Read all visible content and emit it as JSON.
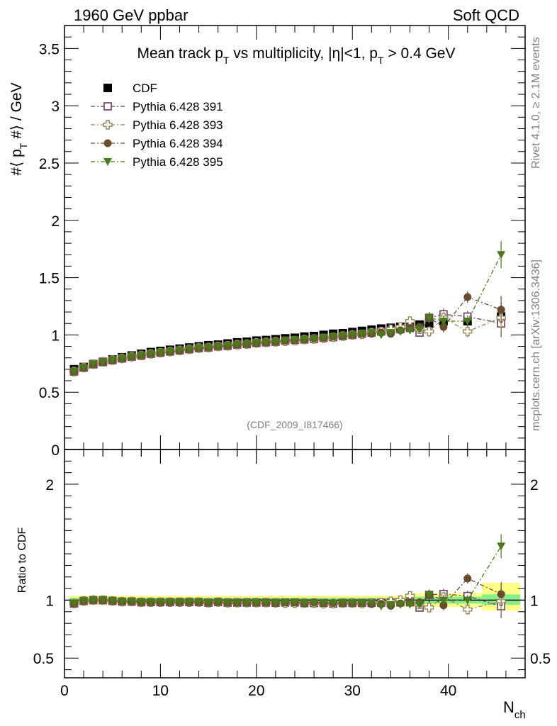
{
  "header": {
    "left": "1960 GeV ppbar",
    "right": "Soft QCD"
  },
  "title": {
    "prefix": "Mean track p",
    "sub1": "T",
    "mid": " vs multiplicity, |η|<1, p",
    "sub2": "T",
    "suffix": " > 0.4 GeV"
  },
  "side_labels": {
    "rivet": "Rivet 4.1.0, ≥ 2.1M events",
    "mcplots": "mcplots.cern.ch [arXiv:1306.3436]"
  },
  "analysis_tag": "(CDF_2009_I817466)",
  "axes": {
    "ylabel_main": {
      "a": "#⟨ p",
      "sub": "T",
      "b": " #⟩ / GeV"
    },
    "ylabel_ratio": "Ratio to CDF",
    "xlabel": {
      "main": "N",
      "sub": "ch"
    },
    "main_yticks": [
      "0",
      "0.5",
      "1",
      "1.5",
      "2",
      "2.5",
      "3",
      "3.5"
    ],
    "ratio_yticks": [
      "0.5",
      "1",
      "2"
    ],
    "xticks": [
      "0",
      "10",
      "20",
      "30",
      "40"
    ]
  },
  "legend": [
    {
      "label": "CDF",
      "marker": "filled-square",
      "color": "#000000"
    },
    {
      "label": "Pythia 6.428 391",
      "marker": "open-square",
      "color": "#6b3f5c"
    },
    {
      "label": "Pythia 6.428 393",
      "marker": "open-cross",
      "color": "#9a8756"
    },
    {
      "label": "Pythia 6.428 394",
      "marker": "filled-circle",
      "color": "#6a4b30"
    },
    {
      "label": "Pythia 6.428 395",
      "marker": "filled-triangle-down",
      "color": "#4a7a1c"
    }
  ],
  "chart_data": {
    "type": "scatter",
    "title": "Mean track pT vs multiplicity, |η|<1, pT > 0.4 GeV",
    "xlabel": "Nch",
    "ylabel": "#⟨ pT #⟩ / GeV",
    "xlim": [
      0,
      48
    ],
    "ylim": [
      0,
      3.7
    ],
    "ratio_ylim": [
      0.33,
      2.3
    ],
    "ratio_ylabel": "Ratio to CDF",
    "x": [
      1,
      2,
      3,
      4,
      5,
      6,
      7,
      8,
      9,
      10,
      11,
      12,
      13,
      14,
      15,
      16,
      17,
      18,
      19,
      20,
      21,
      22,
      23,
      24,
      25,
      26,
      27,
      28,
      29,
      30,
      31,
      32,
      33,
      34,
      35,
      36,
      37,
      38,
      39.5,
      42,
      45.5
    ],
    "series": [
      {
        "name": "CDF",
        "values": [
          0.7,
          0.72,
          0.745,
          0.765,
          0.785,
          0.805,
          0.82,
          0.835,
          0.85,
          0.86,
          0.87,
          0.88,
          0.89,
          0.9,
          0.91,
          0.915,
          0.925,
          0.935,
          0.94,
          0.95,
          0.955,
          0.962,
          0.97,
          0.975,
          0.985,
          0.99,
          1.0,
          1.01,
          1.015,
          1.025,
          1.035,
          1.045,
          1.055,
          1.062,
          1.07,
          1.08,
          1.09,
          1.1,
          1.12,
          1.12,
          1.16
        ]
      },
      {
        "name": "Pythia 6.428 391",
        "values": [
          0.68,
          0.715,
          0.745,
          0.765,
          0.78,
          0.795,
          0.81,
          0.82,
          0.835,
          0.845,
          0.855,
          0.865,
          0.875,
          0.885,
          0.89,
          0.9,
          0.905,
          0.915,
          0.92,
          0.93,
          0.935,
          0.94,
          0.95,
          0.955,
          0.96,
          0.965,
          0.975,
          0.98,
          0.99,
          1.0,
          1.01,
          1.02,
          1.03,
          1.04,
          1.05,
          1.06,
          1.02,
          1.15,
          1.18,
          1.16,
          1.1
        ]
      },
      {
        "name": "Pythia 6.428 393",
        "values": [
          0.68,
          0.715,
          0.745,
          0.765,
          0.78,
          0.795,
          0.81,
          0.82,
          0.835,
          0.845,
          0.855,
          0.865,
          0.875,
          0.885,
          0.89,
          0.9,
          0.905,
          0.915,
          0.92,
          0.93,
          0.935,
          0.94,
          0.945,
          0.95,
          0.96,
          0.965,
          0.97,
          0.98,
          0.99,
          1.0,
          1.005,
          1.02,
          1.03,
          1.05,
          1.07,
          1.12,
          1.05,
          1.03,
          1.15,
          1.03,
          1.15
        ]
      },
      {
        "name": "Pythia 6.428 394",
        "values": [
          0.68,
          0.715,
          0.745,
          0.765,
          0.78,
          0.795,
          0.81,
          0.82,
          0.835,
          0.845,
          0.855,
          0.865,
          0.875,
          0.885,
          0.89,
          0.9,
          0.905,
          0.915,
          0.92,
          0.93,
          0.935,
          0.94,
          0.95,
          0.955,
          0.96,
          0.97,
          0.975,
          0.985,
          0.99,
          1.0,
          1.01,
          1.01,
          1.02,
          1.01,
          1.04,
          1.06,
          1.07,
          1.15,
          1.07,
          1.33,
          1.22
        ]
      },
      {
        "name": "Pythia 6.428 395",
        "values": [
          0.68,
          0.715,
          0.745,
          0.765,
          0.78,
          0.795,
          0.81,
          0.82,
          0.835,
          0.845,
          0.855,
          0.865,
          0.875,
          0.885,
          0.89,
          0.9,
          0.905,
          0.915,
          0.92,
          0.93,
          0.935,
          0.94,
          0.95,
          0.955,
          0.96,
          0.965,
          0.975,
          0.985,
          0.99,
          1.0,
          1.01,
          1.02,
          1.0,
          1.02,
          1.03,
          1.04,
          1.05,
          1.15,
          1.12,
          1.12,
          1.7
        ]
      }
    ],
    "uncertainty_bands": [
      {
        "x": [
          0.5,
          35.5
        ],
        "inner": [
          0.98,
          1.02
        ],
        "outer": [
          0.96,
          1.04
        ]
      },
      {
        "x": [
          35.5,
          43.5
        ],
        "inner": [
          0.97,
          1.03
        ],
        "outer": [
          0.94,
          1.06
        ]
      },
      {
        "x": [
          43.5,
          47.5
        ],
        "inner": [
          0.96,
          1.05
        ],
        "outer": [
          0.91,
          1.15
        ]
      }
    ]
  }
}
